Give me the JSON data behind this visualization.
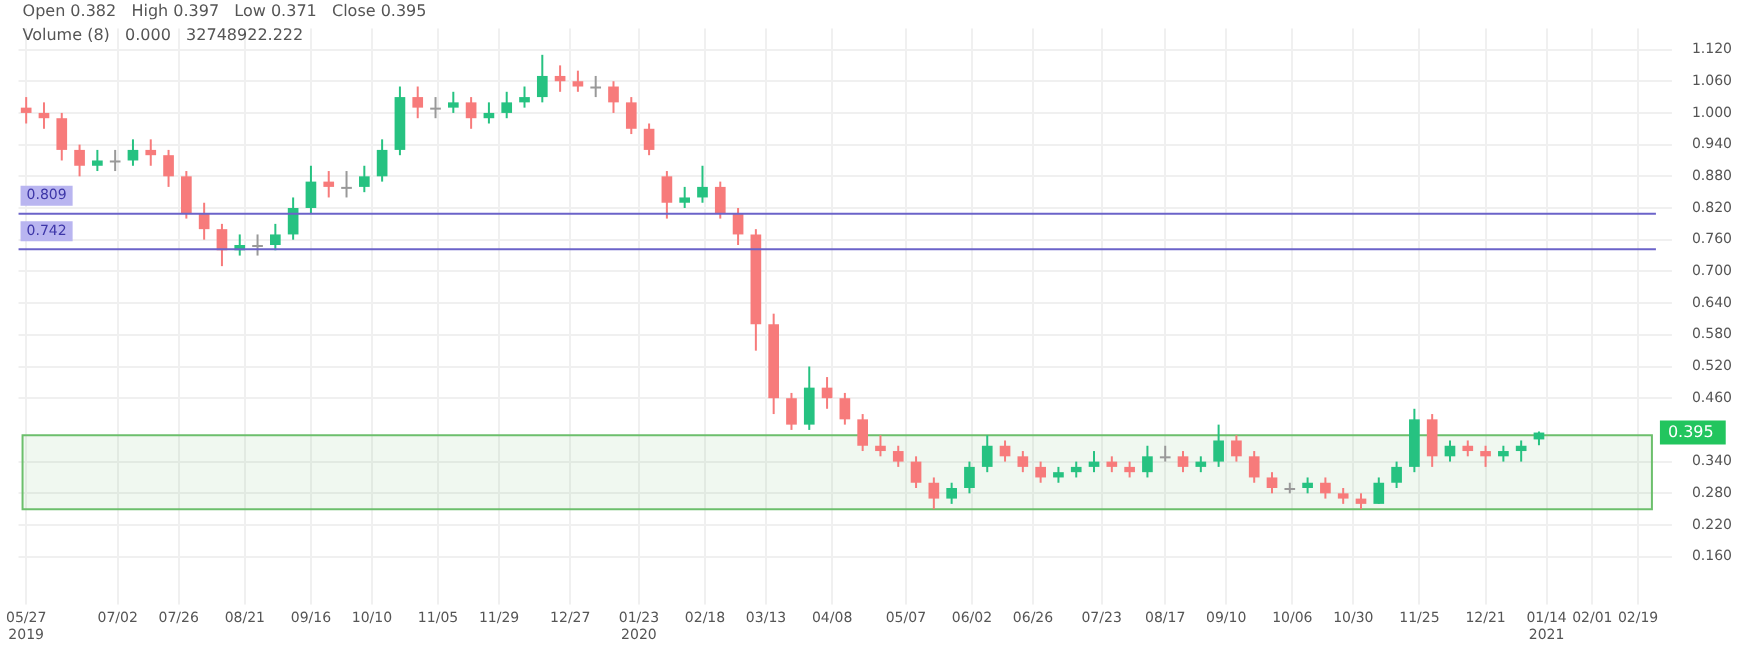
{
  "chart_data": {
    "type": "candlestick",
    "x": [
      "2019-05-27",
      "2019-06-03",
      "2019-06-10",
      "2019-06-17",
      "2019-06-24",
      "2019-07-01",
      "2019-07-08",
      "2019-07-15",
      "2019-07-22",
      "2019-07-29",
      "2019-08-05",
      "2019-08-12",
      "2019-08-19",
      "2019-08-26",
      "2019-09-02",
      "2019-09-09",
      "2019-09-16",
      "2019-09-23",
      "2019-09-30",
      "2019-10-07",
      "2019-10-14",
      "2019-10-21",
      "2019-10-28",
      "2019-11-04",
      "2019-11-11",
      "2019-11-18",
      "2019-11-25",
      "2019-12-02",
      "2019-12-09",
      "2019-12-16",
      "2019-12-23",
      "2019-12-30",
      "2020-01-06",
      "2020-01-13",
      "2020-01-20",
      "2020-01-27",
      "2020-02-03",
      "2020-02-10",
      "2020-02-17",
      "2020-02-24",
      "2020-03-02",
      "2020-03-09",
      "2020-03-16",
      "2020-03-23",
      "2020-03-30",
      "2020-04-06",
      "2020-04-13",
      "2020-04-20",
      "2020-04-27",
      "2020-05-04",
      "2020-05-11",
      "2020-05-18",
      "2020-05-25",
      "2020-06-01",
      "2020-06-08",
      "2020-06-15",
      "2020-06-22",
      "2020-06-29",
      "2020-07-06",
      "2020-07-13",
      "2020-07-20",
      "2020-07-27",
      "2020-08-03",
      "2020-08-10",
      "2020-08-17",
      "2020-08-24",
      "2020-08-31",
      "2020-09-07",
      "2020-09-14",
      "2020-09-21",
      "2020-09-28",
      "2020-10-05",
      "2020-10-12",
      "2020-10-19",
      "2020-10-26",
      "2020-11-02",
      "2020-11-09",
      "2020-11-16",
      "2020-11-23",
      "2020-11-30",
      "2020-12-07",
      "2020-12-14",
      "2020-12-21",
      "2020-12-28",
      "2021-01-04",
      "2021-01-11"
    ],
    "ohlc": [
      [
        1.01,
        1.03,
        0.98,
        1.0
      ],
      [
        1.0,
        1.02,
        0.97,
        0.99
      ],
      [
        0.99,
        1.0,
        0.91,
        0.93
      ],
      [
        0.93,
        0.94,
        0.88,
        0.9
      ],
      [
        0.9,
        0.93,
        0.89,
        0.91
      ],
      [
        0.91,
        0.93,
        0.89,
        0.91
      ],
      [
        0.91,
        0.95,
        0.9,
        0.93
      ],
      [
        0.93,
        0.95,
        0.9,
        0.92
      ],
      [
        0.92,
        0.93,
        0.86,
        0.88
      ],
      [
        0.88,
        0.89,
        0.8,
        0.81
      ],
      [
        0.81,
        0.83,
        0.76,
        0.78
      ],
      [
        0.78,
        0.79,
        0.71,
        0.74
      ],
      [
        0.74,
        0.77,
        0.73,
        0.75
      ],
      [
        0.75,
        0.77,
        0.73,
        0.75
      ],
      [
        0.75,
        0.79,
        0.74,
        0.77
      ],
      [
        0.77,
        0.84,
        0.76,
        0.82
      ],
      [
        0.82,
        0.9,
        0.81,
        0.87
      ],
      [
        0.87,
        0.89,
        0.84,
        0.86
      ],
      [
        0.86,
        0.89,
        0.84,
        0.86
      ],
      [
        0.86,
        0.9,
        0.85,
        0.88
      ],
      [
        0.88,
        0.95,
        0.87,
        0.93
      ],
      [
        0.93,
        1.05,
        0.92,
        1.03
      ],
      [
        1.03,
        1.05,
        0.99,
        1.01
      ],
      [
        1.01,
        1.03,
        0.99,
        1.01
      ],
      [
        1.01,
        1.04,
        1.0,
        1.02
      ],
      [
        1.02,
        1.03,
        0.97,
        0.99
      ],
      [
        0.99,
        1.02,
        0.98,
        1.0
      ],
      [
        1.0,
        1.04,
        0.99,
        1.02
      ],
      [
        1.02,
        1.05,
        1.01,
        1.03
      ],
      [
        1.03,
        1.11,
        1.02,
        1.07
      ],
      [
        1.07,
        1.09,
        1.04,
        1.06
      ],
      [
        1.06,
        1.08,
        1.04,
        1.05
      ],
      [
        1.05,
        1.07,
        1.03,
        1.05
      ],
      [
        1.05,
        1.06,
        1.0,
        1.02
      ],
      [
        1.02,
        1.03,
        0.96,
        0.97
      ],
      [
        0.97,
        0.98,
        0.92,
        0.93
      ],
      [
        0.88,
        0.89,
        0.8,
        0.83
      ],
      [
        0.83,
        0.86,
        0.82,
        0.84
      ],
      [
        0.84,
        0.9,
        0.83,
        0.86
      ],
      [
        0.86,
        0.87,
        0.8,
        0.81
      ],
      [
        0.81,
        0.82,
        0.75,
        0.77
      ],
      [
        0.77,
        0.78,
        0.55,
        0.6
      ],
      [
        0.6,
        0.62,
        0.43,
        0.46
      ],
      [
        0.46,
        0.47,
        0.4,
        0.41
      ],
      [
        0.41,
        0.52,
        0.4,
        0.48
      ],
      [
        0.48,
        0.5,
        0.44,
        0.46
      ],
      [
        0.46,
        0.47,
        0.41,
        0.42
      ],
      [
        0.42,
        0.43,
        0.36,
        0.37
      ],
      [
        0.37,
        0.39,
        0.35,
        0.36
      ],
      [
        0.36,
        0.37,
        0.33,
        0.34
      ],
      [
        0.34,
        0.35,
        0.29,
        0.3
      ],
      [
        0.3,
        0.31,
        0.25,
        0.27
      ],
      [
        0.27,
        0.3,
        0.26,
        0.29
      ],
      [
        0.29,
        0.34,
        0.28,
        0.33
      ],
      [
        0.33,
        0.39,
        0.32,
        0.37
      ],
      [
        0.37,
        0.38,
        0.34,
        0.35
      ],
      [
        0.35,
        0.36,
        0.32,
        0.33
      ],
      [
        0.33,
        0.34,
        0.3,
        0.31
      ],
      [
        0.31,
        0.33,
        0.3,
        0.32
      ],
      [
        0.32,
        0.34,
        0.31,
        0.33
      ],
      [
        0.33,
        0.36,
        0.32,
        0.34
      ],
      [
        0.34,
        0.35,
        0.32,
        0.33
      ],
      [
        0.33,
        0.34,
        0.31,
        0.32
      ],
      [
        0.32,
        0.37,
        0.31,
        0.35
      ],
      [
        0.35,
        0.37,
        0.34,
        0.35
      ],
      [
        0.35,
        0.36,
        0.32,
        0.33
      ],
      [
        0.33,
        0.35,
        0.32,
        0.34
      ],
      [
        0.34,
        0.41,
        0.33,
        0.38
      ],
      [
        0.38,
        0.39,
        0.34,
        0.35
      ],
      [
        0.35,
        0.36,
        0.3,
        0.31
      ],
      [
        0.31,
        0.32,
        0.28,
        0.29
      ],
      [
        0.29,
        0.3,
        0.28,
        0.29
      ],
      [
        0.29,
        0.31,
        0.28,
        0.3
      ],
      [
        0.3,
        0.31,
        0.27,
        0.28
      ],
      [
        0.28,
        0.29,
        0.26,
        0.27
      ],
      [
        0.27,
        0.28,
        0.25,
        0.26
      ],
      [
        0.26,
        0.31,
        0.26,
        0.3
      ],
      [
        0.3,
        0.34,
        0.29,
        0.33
      ],
      [
        0.33,
        0.44,
        0.32,
        0.42
      ],
      [
        0.42,
        0.43,
        0.33,
        0.35
      ],
      [
        0.35,
        0.38,
        0.34,
        0.37
      ],
      [
        0.37,
        0.38,
        0.35,
        0.36
      ],
      [
        0.36,
        0.37,
        0.33,
        0.35
      ],
      [
        0.35,
        0.37,
        0.34,
        0.36
      ],
      [
        0.36,
        0.38,
        0.34,
        0.37
      ],
      [
        0.382,
        0.397,
        0.371,
        0.395
      ]
    ],
    "colors": [
      "#f77b7b",
      "#f77b7b",
      "#f77b7b",
      "#f77b7b",
      "#26c281",
      "#999999",
      "#26c281",
      "#f77b7b",
      "#f77b7b",
      "#f77b7b",
      "#f77b7b",
      "#f77b7b",
      "#26c281",
      "#999999",
      "#26c281",
      "#26c281",
      "#26c281",
      "#f77b7b",
      "#999999",
      "#26c281",
      "#26c281",
      "#26c281",
      "#f77b7b",
      "#999999",
      "#26c281",
      "#f77b7b",
      "#26c281",
      "#26c281",
      "#26c281",
      "#26c281",
      "#f77b7b",
      "#f77b7b",
      "#999999",
      "#f77b7b",
      "#f77b7b",
      "#f77b7b",
      "#f77b7b",
      "#26c281",
      "#26c281",
      "#f77b7b",
      "#f77b7b",
      "#f77b7b",
      "#f77b7b",
      "#f77b7b",
      "#26c281",
      "#f77b7b",
      "#f77b7b",
      "#f77b7b",
      "#f77b7b",
      "#f77b7b",
      "#f77b7b",
      "#f77b7b",
      "#26c281",
      "#26c281",
      "#26c281",
      "#f77b7b",
      "#f77b7b",
      "#f77b7b",
      "#26c281",
      "#26c281",
      "#26c281",
      "#f77b7b",
      "#f77b7b",
      "#26c281",
      "#999999",
      "#f77b7b",
      "#26c281",
      "#26c281",
      "#f77b7b",
      "#f77b7b",
      "#f77b7b",
      "#999999",
      "#26c281",
      "#f77b7b",
      "#f77b7b",
      "#f77b7b",
      "#26c281",
      "#26c281",
      "#26c281",
      "#f77b7b",
      "#26c281",
      "#f77b7b",
      "#f77b7b",
      "#26c281",
      "#26c281",
      "#26c281"
    ],
    "xlim": [
      "2019-05-24",
      "2021-02-26"
    ],
    "xticks": [
      {
        "value": "2019-05-27",
        "label": "05/27 2019"
      },
      {
        "value": "2019-07-02",
        "label": "07/02"
      },
      {
        "value": "2019-07-26",
        "label": "07/26"
      },
      {
        "value": "2019-08-21",
        "label": "08/21"
      },
      {
        "value": "2019-09-16",
        "label": "09/16"
      },
      {
        "value": "2019-10-10",
        "label": "10/10"
      },
      {
        "value": "2019-11-05",
        "label": "11/05"
      },
      {
        "value": "2019-11-29",
        "label": "11/29"
      },
      {
        "value": "2019-12-27",
        "label": "12/27"
      },
      {
        "value": "2020-01-23",
        "label": "01/23 2020"
      },
      {
        "value": "2020-02-18",
        "label": "02/18"
      },
      {
        "value": "2020-03-13",
        "label": "03/13"
      },
      {
        "value": "2020-04-08",
        "label": "04/08"
      },
      {
        "value": "2020-05-07",
        "label": "05/07"
      },
      {
        "value": "2020-06-02",
        "label": "06/02"
      },
      {
        "value": "2020-06-26",
        "label": "06/26"
      },
      {
        "value": "2020-07-23",
        "label": "07/23"
      },
      {
        "value": "2020-08-17",
        "label": "08/17"
      },
      {
        "value": "2020-09-10",
        "label": "09/10"
      },
      {
        "value": "2020-10-06",
        "label": "10/06"
      },
      {
        "value": "2020-10-30",
        "label": "10/30"
      },
      {
        "value": "2020-11-25",
        "label": "11/25"
      },
      {
        "value": "2020-12-21",
        "label": "12/21"
      },
      {
        "value": "2021-01-14",
        "label": "01/14 2021"
      },
      {
        "value": "2021-02-01",
        "label": "02/01"
      },
      {
        "value": "2021-02-19",
        "label": "02/19"
      }
    ],
    "ylim": [
      0.1,
      1.16
    ],
    "yticks": [
      {
        "value": 0.16,
        "label": "0.160"
      },
      {
        "value": 0.22,
        "label": "0.220"
      },
      {
        "value": 0.28,
        "label": "0.280"
      },
      {
        "value": 0.34,
        "label": "0.340"
      },
      {
        "value": 0.46,
        "label": "0.460"
      },
      {
        "value": 0.52,
        "label": "0.520"
      },
      {
        "value": 0.58,
        "label": "0.580"
      },
      {
        "value": 0.64,
        "label": "0.640"
      },
      {
        "value": 0.7,
        "label": "0.700"
      },
      {
        "value": 0.76,
        "label": "0.760"
      },
      {
        "value": 0.82,
        "label": "0.820"
      },
      {
        "value": 0.88,
        "label": "0.880"
      },
      {
        "value": 0.94,
        "label": "0.940"
      },
      {
        "value": 1.0,
        "label": "1.000"
      },
      {
        "value": 1.06,
        "label": "1.060"
      },
      {
        "value": 1.12,
        "label": "1.120"
      }
    ],
    "ref_lines": [
      {
        "axis": "y",
        "value": 0.809,
        "label": "0.809",
        "color": "#6b63c9"
      },
      {
        "axis": "y",
        "value": 0.742,
        "label": "0.742",
        "color": "#6b63c9"
      }
    ],
    "bands": [
      {
        "axis": "y",
        "from": 0.25,
        "to": 0.39,
        "color": "#6cbf6c"
      }
    ],
    "annotations": [
      "Open 0.382   High 0.397   Low 0.371   Close 0.395",
      "Volume (8)   0.000   32748922.222",
      {
        "text": "0.395",
        "y": 0.395
      }
    ],
    "grid": true,
    "legend": false
  }
}
